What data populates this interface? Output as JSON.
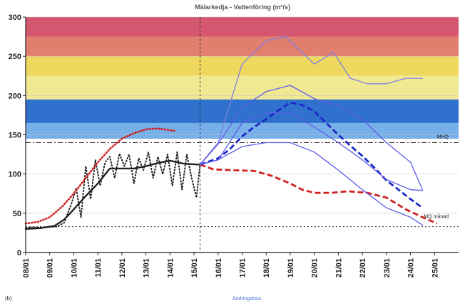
{
  "chart_data": {
    "type": "line",
    "title": "Mälarkedja - Vattenföring (m³/s)",
    "ylim": [
      0,
      300
    ],
    "yticks": [
      0,
      50,
      100,
      150,
      200,
      250,
      300
    ],
    "xlim": [
      0,
      18
    ],
    "xticks": [
      "08/01",
      "09/01",
      "10/01",
      "11/01",
      "12/01",
      "13/01",
      "14/01",
      "15/01",
      "16/01",
      "17/01",
      "18/01",
      "19/01",
      "20/01",
      "21/01",
      "22/01",
      "23/01",
      "24/01",
      "25/01"
    ],
    "forecast_start": 7.25,
    "bands": [
      {
        "from": 275,
        "to": 300,
        "color": "#d5576f"
      },
      {
        "from": 250,
        "to": 275,
        "color": "#e27e6e"
      },
      {
        "from": 225,
        "to": 250,
        "color": "#efd85e"
      },
      {
        "from": 195,
        "to": 225,
        "color": "#f1e892"
      },
      {
        "from": 165,
        "to": 195,
        "color": "#2f71cd"
      },
      {
        "from": 145,
        "to": 165,
        "color": "#77afe8"
      }
    ],
    "reference_lines": [
      {
        "y": 140,
        "label": "MHQ",
        "style": "dashdot"
      },
      {
        "y": 33,
        "label": "MQ månad",
        "style": "dotted"
      }
    ],
    "series": [
      {
        "color": "#222222",
        "style": "solid",
        "width": 2.4,
        "x": [
          0,
          0.6,
          1.2,
          1.6,
          2,
          2.5,
          3,
          3.5,
          4,
          4.5,
          5,
          5.5,
          6,
          6.6,
          7.25
        ],
        "y": [
          30,
          31,
          34,
          42,
          55,
          72,
          88,
          107,
          107,
          107,
          110,
          114,
          117,
          113,
          112
        ]
      },
      {
        "color": "#222222",
        "style": "dotted",
        "width": 2,
        "x": [
          0,
          0.8,
          1.3,
          1.6,
          1.9,
          2.1,
          2.3,
          2.5,
          2.7,
          2.9,
          3.1,
          3.3,
          3.5,
          3.7,
          3.9,
          4.1,
          4.3,
          4.5,
          4.7,
          4.9,
          5.1,
          5.3,
          5.5,
          5.7,
          5.9,
          6.1,
          6.3,
          6.5,
          6.7,
          6.9,
          7.1,
          7.25
        ],
        "y": [
          32,
          32,
          33,
          38,
          62,
          82,
          45,
          110,
          68,
          118,
          85,
          115,
          122,
          95,
          126,
          110,
          125,
          88,
          120,
          105,
          128,
          95,
          122,
          100,
          125,
          85,
          128,
          80,
          125,
          95,
          70,
          112
        ]
      },
      {
        "color": "#d02020",
        "style": "dotted",
        "width": 2.6,
        "x": [
          0,
          0.5,
          1,
          1.5,
          2,
          2.5,
          3,
          3.5,
          4,
          4.5,
          5,
          5.5,
          6.2
        ],
        "y": [
          37,
          39,
          45,
          58,
          75,
          95,
          115,
          132,
          145,
          152,
          157,
          158,
          155
        ]
      },
      {
        "color": "#d02020",
        "style": "dashed",
        "width": 2.8,
        "x": [
          7.25,
          7.8,
          8.5,
          9.5,
          10.2,
          11,
          11.5,
          12,
          12.7,
          13.4,
          14.2,
          15,
          15.8,
          16.5,
          17.1
        ],
        "y": [
          112,
          106,
          105,
          104,
          98,
          88,
          80,
          76,
          76,
          78,
          76,
          70,
          55,
          45,
          37
        ]
      },
      {
        "color": "#1c28c8",
        "style": "dashed",
        "width": 2.8,
        "x": [
          7.25,
          8,
          8.5,
          9,
          9.5,
          10,
          10.5,
          11,
          11.5,
          12,
          12.5,
          13,
          13.5,
          14,
          14.5,
          15,
          15.5,
          16,
          16.5
        ],
        "y": [
          112,
          120,
          132,
          148,
          160,
          170,
          181,
          191,
          188,
          180,
          165,
          150,
          136,
          123,
          108,
          92,
          80,
          68,
          57
        ]
      },
      {
        "color": "#7f7fe0",
        "style": "solid",
        "width": 1.3,
        "x": [
          7.25,
          8,
          9,
          10,
          10.8,
          12,
          12.8,
          13.5,
          14.2,
          15,
          15.8,
          16.5
        ],
        "y": [
          112,
          140,
          240,
          270,
          275,
          240,
          255,
          222,
          215,
          215,
          222,
          222
        ]
      },
      {
        "color": "#5c5ce8",
        "style": "solid",
        "width": 1.3,
        "x": [
          7.25,
          8,
          9,
          10,
          11,
          12,
          13,
          14,
          15,
          16,
          16.5
        ],
        "y": [
          112,
          138,
          185,
          205,
          213,
          196,
          187,
          170,
          140,
          115,
          80
        ]
      },
      {
        "color": "#5c5ce8",
        "style": "solid",
        "width": 1.3,
        "x": [
          7.25,
          8,
          9,
          10,
          11,
          12,
          13,
          14,
          15,
          16,
          16.5
        ],
        "y": [
          112,
          118,
          165,
          178,
          178,
          160,
          140,
          118,
          93,
          80,
          79
        ]
      },
      {
        "color": "#5c5ce8",
        "style": "solid",
        "width": 1.3,
        "x": [
          7.25,
          8,
          9,
          10,
          11,
          12,
          13,
          14,
          15,
          16,
          16.5
        ],
        "y": [
          112,
          118,
          135,
          140,
          140,
          128,
          105,
          80,
          57,
          45,
          35
        ]
      }
    ]
  },
  "footer": {
    "left_label": "(b)",
    "link_label": "Ändringslista"
  }
}
